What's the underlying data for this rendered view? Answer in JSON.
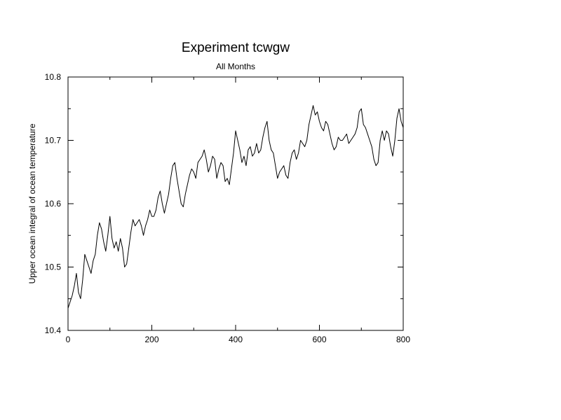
{
  "chart_data": {
    "type": "line",
    "title": "Experiment tcwgw",
    "subtitle": "All Months",
    "xlabel": "",
    "ylabel": "Upper ocean integral of ocean temperature",
    "xlim": [
      0,
      800
    ],
    "ylim": [
      10.4,
      10.8
    ],
    "x_ticks": [
      0,
      200,
      400,
      600,
      800
    ],
    "y_ticks": [
      10.4,
      10.5,
      10.6,
      10.7,
      10.8
    ],
    "x_tick_labels": [
      "0",
      "200",
      "400",
      "600",
      "800"
    ],
    "y_tick_labels": [
      "10.4",
      "10.5",
      "10.6",
      "10.7",
      "10.8"
    ],
    "grid": false,
    "line_color": "#000000",
    "series": [
      {
        "x": [
          0,
          5,
          10,
          15,
          20,
          25,
          30,
          35,
          40,
          45,
          50,
          55,
          60,
          65,
          70,
          75,
          80,
          85,
          90,
          95,
          100,
          105,
          110,
          115,
          120,
          125,
          130,
          135,
          140,
          145,
          150,
          155,
          160,
          165,
          170,
          175,
          180,
          185,
          190,
          195,
          200,
          205,
          210,
          215,
          220,
          225,
          230,
          235,
          240,
          245,
          250,
          255,
          260,
          265,
          270,
          275,
          280,
          285,
          290,
          295,
          300,
          305,
          310,
          315,
          320,
          325,
          330,
          335,
          340,
          345,
          350,
          355,
          360,
          365,
          370,
          375,
          380,
          385,
          390,
          395,
          400,
          405,
          410,
          415,
          420,
          425,
          430,
          435,
          440,
          445,
          450,
          455,
          460,
          465,
          470,
          475,
          480,
          485,
          490,
          495,
          500,
          505,
          510,
          515,
          520,
          525,
          530,
          535,
          540,
          545,
          550,
          555,
          560,
          565,
          570,
          575,
          580,
          585,
          590,
          595,
          600,
          605,
          610,
          615,
          620,
          625,
          630,
          635,
          640,
          645,
          650,
          655,
          660,
          665,
          670,
          675,
          680,
          685,
          690,
          695,
          700,
          705,
          710,
          715,
          720,
          725,
          730,
          735,
          740,
          745,
          750,
          755,
          760,
          765,
          770,
          775,
          780,
          785,
          790,
          795,
          800
        ],
        "y": [
          10.435,
          10.445,
          10.455,
          10.47,
          10.49,
          10.46,
          10.45,
          10.48,
          10.52,
          10.51,
          10.5,
          10.49,
          10.51,
          10.52,
          10.55,
          10.57,
          10.56,
          10.54,
          10.525,
          10.55,
          10.58,
          10.545,
          10.53,
          10.54,
          10.525,
          10.545,
          10.53,
          10.5,
          10.505,
          10.53,
          10.555,
          10.575,
          10.565,
          10.57,
          10.575,
          10.565,
          10.55,
          10.565,
          10.575,
          10.59,
          10.58,
          10.58,
          10.59,
          10.61,
          10.62,
          10.6,
          10.585,
          10.6,
          10.615,
          10.64,
          10.66,
          10.665,
          10.64,
          10.62,
          10.6,
          10.595,
          10.615,
          10.63,
          10.645,
          10.655,
          10.65,
          10.64,
          10.665,
          10.67,
          10.675,
          10.685,
          10.67,
          10.65,
          10.66,
          10.675,
          10.67,
          10.64,
          10.655,
          10.665,
          10.66,
          10.635,
          10.64,
          10.63,
          10.655,
          10.68,
          10.715,
          10.7,
          10.685,
          10.665,
          10.675,
          10.66,
          10.685,
          10.69,
          10.675,
          10.68,
          10.695,
          10.68,
          10.685,
          10.705,
          10.72,
          10.73,
          10.7,
          10.685,
          10.68,
          10.66,
          10.64,
          10.65,
          10.655,
          10.66,
          10.645,
          10.64,
          10.665,
          10.68,
          10.685,
          10.67,
          10.68,
          10.7,
          10.695,
          10.69,
          10.7,
          10.725,
          10.74,
          10.755,
          10.74,
          10.745,
          10.73,
          10.72,
          10.715,
          10.73,
          10.725,
          10.71,
          10.695,
          10.685,
          10.69,
          10.705,
          10.7,
          10.7,
          10.705,
          10.71,
          10.695,
          10.7,
          10.705,
          10.71,
          10.72,
          10.745,
          10.75,
          10.725,
          10.72,
          10.71,
          10.7,
          10.69,
          10.67,
          10.66,
          10.665,
          10.7,
          10.715,
          10.7,
          10.715,
          10.71,
          10.69,
          10.675,
          10.7,
          10.735,
          10.75,
          10.73,
          10.72
        ]
      }
    ]
  }
}
